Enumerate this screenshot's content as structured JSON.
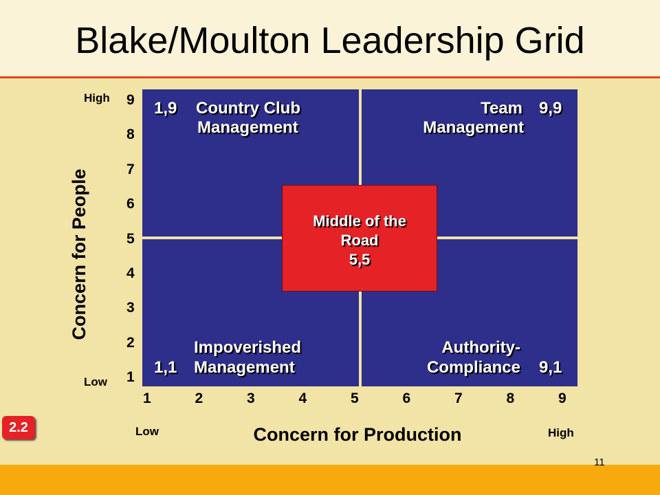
{
  "title": "Blake/Moulton Leadership Grid",
  "y_axis": {
    "label": "Concern for People",
    "low": "Low",
    "high": "High",
    "ticks": [
      9,
      8,
      7,
      6,
      5,
      4,
      3,
      2,
      1
    ]
  },
  "x_axis": {
    "label": "Concern for Production",
    "low": "Low",
    "high": "High",
    "ticks": [
      1,
      2,
      3,
      4,
      5,
      6,
      7,
      8,
      9
    ]
  },
  "quadrants": [
    {
      "code": "1,9",
      "lines": [
        "Country Club",
        "Management"
      ]
    },
    {
      "code": "9,9",
      "lines": [
        "Team",
        "Management"
      ]
    },
    {
      "code": "1,1",
      "lines": [
        "Impoverished",
        "Management"
      ]
    },
    {
      "code": "9,1",
      "lines": [
        "Authority-",
        "Compliance"
      ]
    }
  ],
  "center": {
    "lines": [
      "Middle of the",
      "Road"
    ],
    "code": "5,5"
  },
  "badge": "2.2",
  "page_number": "11"
}
